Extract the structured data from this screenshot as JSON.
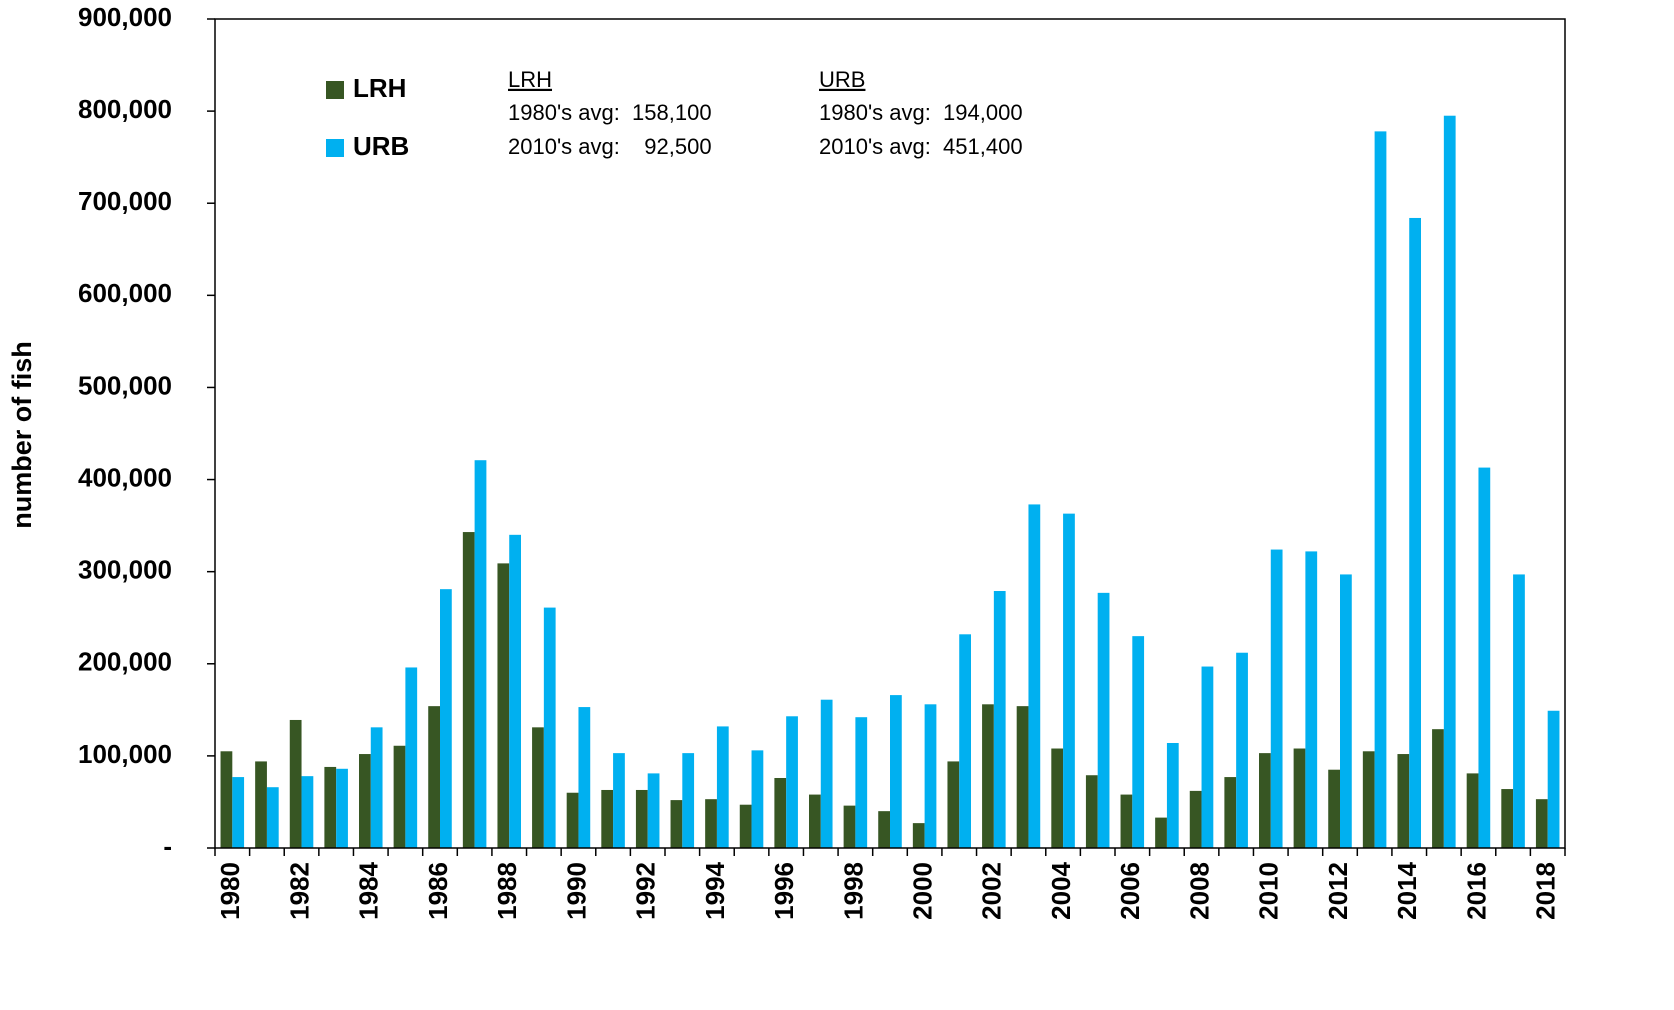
{
  "chart_data": {
    "type": "bar",
    "y_label": "number of fish",
    "categories": [
      "1980",
      null,
      "1982",
      null,
      "1984",
      null,
      "1986",
      null,
      "1988",
      null,
      "1990",
      null,
      "1992",
      null,
      "1994",
      null,
      "1996",
      null,
      "1998",
      null,
      "2000",
      null,
      "2002",
      null,
      "2004",
      null,
      "2006",
      null,
      "2008",
      null,
      "2010",
      null,
      "2012",
      null,
      "2014",
      null,
      "2016",
      null,
      "2018"
    ],
    "series": [
      {
        "name": "LRH",
        "color": "#375623",
        "values": [
          105000,
          94000,
          139000,
          88000,
          102000,
          111000,
          154000,
          343000,
          309000,
          131000,
          60000,
          63000,
          63000,
          52000,
          53000,
          47000,
          76000,
          58000,
          46000,
          40000,
          27000,
          94000,
          156000,
          154000,
          108000,
          79000,
          58000,
          33000,
          62000,
          77000,
          103000,
          108000,
          85000,
          105000,
          102000,
          129000,
          81000,
          64000,
          53000
        ]
      },
      {
        "name": "URB",
        "color": "#00b0f0",
        "values": [
          77000,
          66000,
          78000,
          86000,
          131000,
          196000,
          281000,
          421000,
          340000,
          261000,
          153000,
          103000,
          81000,
          103000,
          132000,
          106000,
          143000,
          161000,
          142000,
          166000,
          156000,
          232000,
          279000,
          373000,
          363000,
          277000,
          230000,
          114000,
          197000,
          212000,
          324000,
          322000,
          297000,
          778000,
          684000,
          795000,
          413000,
          297000,
          149000
        ]
      }
    ],
    "ylim": [
      0,
      900000
    ],
    "yticks": [
      {
        "value": 0,
        "label": "-"
      },
      {
        "value": 100000,
        "label": "100,000"
      },
      {
        "value": 200000,
        "label": "200,000"
      },
      {
        "value": 300000,
        "label": "300,000"
      },
      {
        "value": 400000,
        "label": "400,000"
      },
      {
        "value": 500000,
        "label": "500,000"
      },
      {
        "value": 600000,
        "label": "600,000"
      },
      {
        "value": 700000,
        "label": "700,000"
      },
      {
        "value": 800000,
        "label": "800,000"
      },
      {
        "value": 900000,
        "label": "900,000"
      }
    ],
    "legend": "upper left",
    "annotations": [
      {
        "heading": "LRH",
        "lines": [
          "1980's avg:  158,100",
          "2010's avg:    92,500"
        ]
      },
      {
        "heading": "URB",
        "lines": [
          "1980's avg:  194,000",
          "2010's avg:  451,400"
        ]
      }
    ]
  }
}
